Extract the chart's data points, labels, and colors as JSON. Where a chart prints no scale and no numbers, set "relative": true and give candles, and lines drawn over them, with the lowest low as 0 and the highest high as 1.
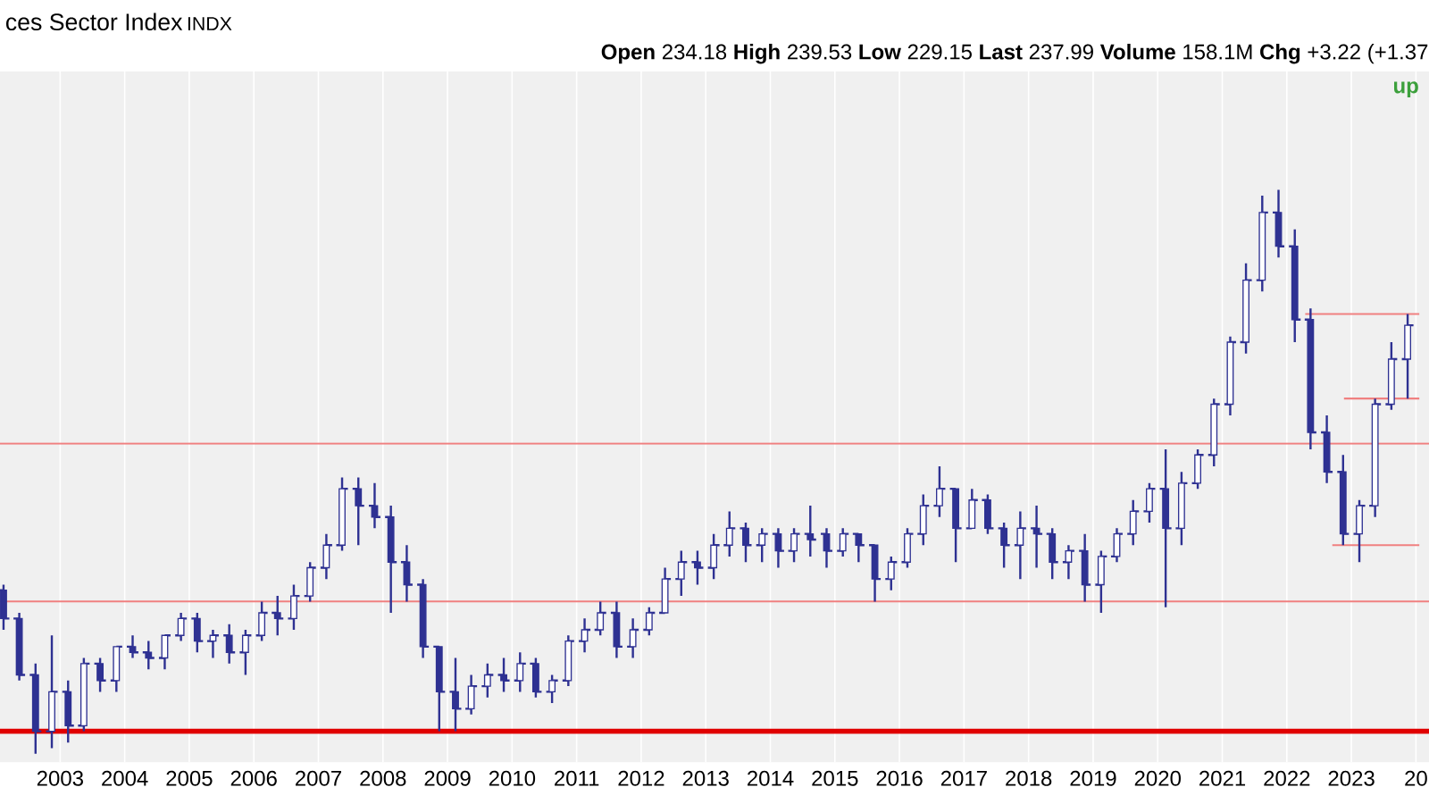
{
  "chart_data": {
    "type": "candlestick",
    "title": "ces Sector Index",
    "subtitle": "INDX",
    "relative": true,
    "color": "#2e3192",
    "annotations": [
      "**Open** 234.18 **High** 239.53 **Low** 229.15 **Last** 237.99 **Volume** 158.1M **Chg** +3.22 (+1.37",
      "up"
    ],
    "x": [
      "2002-02-15",
      "2002-05-15",
      "2002-08-15",
      "2002-11-15",
      "2003-02-15",
      "2003-05-15",
      "2003-08-15",
      "2003-11-15",
      "2004-02-15",
      "2004-05-15",
      "2004-08-15",
      "2004-11-15",
      "2005-02-15",
      "2005-05-15",
      "2005-08-15",
      "2005-11-15",
      "2006-02-15",
      "2006-05-15",
      "2006-08-15",
      "2006-11-15",
      "2007-02-15",
      "2007-05-15",
      "2007-08-15",
      "2007-11-15",
      "2008-02-15",
      "2008-05-15",
      "2008-08-15",
      "2008-11-15",
      "2009-02-15",
      "2009-05-15",
      "2009-08-15",
      "2009-11-15",
      "2010-02-15",
      "2010-05-15",
      "2010-08-15",
      "2010-11-15",
      "2011-02-15",
      "2011-05-15",
      "2011-08-15",
      "2011-11-15",
      "2012-02-15",
      "2012-05-15",
      "2012-08-15",
      "2012-11-15",
      "2013-02-15",
      "2013-05-15",
      "2013-08-15",
      "2013-11-15",
      "2014-02-15",
      "2014-05-15",
      "2014-08-15",
      "2014-11-15",
      "2015-02-15",
      "2015-05-15",
      "2015-08-15",
      "2015-11-15",
      "2016-02-15",
      "2016-05-15",
      "2016-08-15",
      "2016-11-15",
      "2017-02-15",
      "2017-05-15",
      "2017-08-15",
      "2017-11-15",
      "2018-02-15",
      "2018-05-15",
      "2018-08-15",
      "2018-11-15",
      "2019-02-15",
      "2019-05-15",
      "2019-08-15",
      "2019-11-15",
      "2020-02-15",
      "2020-05-15",
      "2020-08-15",
      "2020-11-15",
      "2021-02-15",
      "2021-05-15",
      "2021-08-15",
      "2021-11-15",
      "2022-02-15",
      "2022-05-15",
      "2022-08-15",
      "2022-11-15",
      "2023-02-15",
      "2023-05-15",
      "2023-08-15",
      "2023-11-15"
    ],
    "ohlc": [
      [
        0.29,
        0.3,
        0.22,
        0.24
      ],
      [
        0.24,
        0.25,
        0.13,
        0.14
      ],
      [
        0.14,
        0.16,
        0.0,
        0.04
      ],
      [
        0.04,
        0.21,
        0.01,
        0.11
      ],
      [
        0.11,
        0.13,
        0.02,
        0.05
      ],
      [
        0.05,
        0.17,
        0.04,
        0.16
      ],
      [
        0.16,
        0.17,
        0.11,
        0.13
      ],
      [
        0.13,
        0.19,
        0.11,
        0.19
      ],
      [
        0.19,
        0.21,
        0.17,
        0.18
      ],
      [
        0.18,
        0.2,
        0.15,
        0.17
      ],
      [
        0.17,
        0.21,
        0.15,
        0.21
      ],
      [
        0.21,
        0.25,
        0.2,
        0.24
      ],
      [
        0.24,
        0.25,
        0.18,
        0.2
      ],
      [
        0.2,
        0.22,
        0.17,
        0.21
      ],
      [
        0.21,
        0.23,
        0.16,
        0.18
      ],
      [
        0.18,
        0.22,
        0.14,
        0.21
      ],
      [
        0.21,
        0.27,
        0.2,
        0.25
      ],
      [
        0.25,
        0.28,
        0.21,
        0.24
      ],
      [
        0.24,
        0.3,
        0.22,
        0.28
      ],
      [
        0.28,
        0.34,
        0.27,
        0.33
      ],
      [
        0.33,
        0.39,
        0.31,
        0.37
      ],
      [
        0.37,
        0.49,
        0.36,
        0.47
      ],
      [
        0.47,
        0.49,
        0.37,
        0.44
      ],
      [
        0.44,
        0.48,
        0.4,
        0.42
      ],
      [
        0.42,
        0.44,
        0.25,
        0.34
      ],
      [
        0.34,
        0.37,
        0.27,
        0.3
      ],
      [
        0.3,
        0.31,
        0.17,
        0.19
      ],
      [
        0.19,
        0.19,
        0.04,
        0.11
      ],
      [
        0.11,
        0.17,
        0.04,
        0.08
      ],
      [
        0.08,
        0.14,
        0.07,
        0.12
      ],
      [
        0.12,
        0.16,
        0.1,
        0.14
      ],
      [
        0.14,
        0.17,
        0.11,
        0.13
      ],
      [
        0.13,
        0.18,
        0.11,
        0.16
      ],
      [
        0.16,
        0.17,
        0.1,
        0.11
      ],
      [
        0.11,
        0.14,
        0.09,
        0.13
      ],
      [
        0.13,
        0.21,
        0.12,
        0.2
      ],
      [
        0.2,
        0.24,
        0.18,
        0.22
      ],
      [
        0.22,
        0.27,
        0.21,
        0.25
      ],
      [
        0.25,
        0.27,
        0.17,
        0.19
      ],
      [
        0.19,
        0.24,
        0.17,
        0.22
      ],
      [
        0.22,
        0.26,
        0.21,
        0.25
      ],
      [
        0.25,
        0.33,
        0.25,
        0.31
      ],
      [
        0.31,
        0.36,
        0.28,
        0.34
      ],
      [
        0.34,
        0.36,
        0.3,
        0.33
      ],
      [
        0.33,
        0.39,
        0.31,
        0.37
      ],
      [
        0.37,
        0.43,
        0.35,
        0.4
      ],
      [
        0.4,
        0.41,
        0.34,
        0.37
      ],
      [
        0.37,
        0.4,
        0.34,
        0.39
      ],
      [
        0.39,
        0.4,
        0.33,
        0.36
      ],
      [
        0.36,
        0.4,
        0.34,
        0.39
      ],
      [
        0.39,
        0.44,
        0.35,
        0.38
      ],
      [
        0.39,
        0.4,
        0.33,
        0.36
      ],
      [
        0.36,
        0.4,
        0.35,
        0.39
      ],
      [
        0.39,
        0.39,
        0.34,
        0.37
      ],
      [
        0.37,
        0.37,
        0.27,
        0.31
      ],
      [
        0.31,
        0.35,
        0.29,
        0.34
      ],
      [
        0.34,
        0.4,
        0.33,
        0.39
      ],
      [
        0.39,
        0.46,
        0.37,
        0.44
      ],
      [
        0.44,
        0.51,
        0.42,
        0.47
      ],
      [
        0.47,
        0.47,
        0.34,
        0.4
      ],
      [
        0.4,
        0.47,
        0.4,
        0.45
      ],
      [
        0.45,
        0.46,
        0.39,
        0.4
      ],
      [
        0.4,
        0.41,
        0.33,
        0.37
      ],
      [
        0.37,
        0.43,
        0.31,
        0.4
      ],
      [
        0.4,
        0.44,
        0.33,
        0.39
      ],
      [
        0.39,
        0.4,
        0.31,
        0.34
      ],
      [
        0.34,
        0.37,
        0.31,
        0.36
      ],
      [
        0.36,
        0.39,
        0.27,
        0.3
      ],
      [
        0.3,
        0.36,
        0.25,
        0.35
      ],
      [
        0.35,
        0.4,
        0.34,
        0.39
      ],
      [
        0.39,
        0.45,
        0.37,
        0.43
      ],
      [
        0.43,
        0.48,
        0.41,
        0.47
      ],
      [
        0.47,
        0.54,
        0.26,
        0.4
      ],
      [
        0.4,
        0.5,
        0.37,
        0.48
      ],
      [
        0.48,
        0.54,
        0.47,
        0.53
      ],
      [
        0.53,
        0.63,
        0.51,
        0.62
      ],
      [
        0.62,
        0.74,
        0.6,
        0.73
      ],
      [
        0.73,
        0.87,
        0.71,
        0.84
      ],
      [
        0.84,
        0.99,
        0.82,
        0.96
      ],
      [
        0.96,
        1.0,
        0.88,
        0.9
      ],
      [
        0.9,
        0.93,
        0.73,
        0.77
      ],
      [
        0.77,
        0.79,
        0.54,
        0.57
      ],
      [
        0.57,
        0.6,
        0.48,
        0.5
      ],
      [
        0.5,
        0.53,
        0.37,
        0.39
      ],
      [
        0.39,
        0.45,
        0.34,
        0.44
      ],
      [
        0.44,
        0.63,
        0.42,
        0.62
      ],
      [
        0.62,
        0.73,
        0.61,
        0.7
      ],
      [
        0.7,
        0.78,
        0.63,
        0.76
      ]
    ],
    "series": [
      {
        "type": "line",
        "x": [
          "2022-04-15",
          "2024-01-20"
        ],
        "values": [
          0.78,
          0.78
        ],
        "color": "#f08080"
      },
      {
        "type": "line",
        "x": [
          "2022-11-20",
          "2024-01-20"
        ],
        "values": [
          0.63,
          0.63
        ],
        "color": "#f08080"
      },
      {
        "type": "line",
        "x": [
          "2022-09-15",
          "2024-01-20"
        ],
        "values": [
          0.37,
          0.37
        ],
        "color": "#f08080"
      }
    ],
    "ref_lines": [
      {
        "axis": "y",
        "value": 0.55,
        "color": "#f08080"
      },
      {
        "axis": "y",
        "value": 0.27,
        "color": "#f08080"
      },
      {
        "axis": "y",
        "value": 0.04,
        "color": "#e00000"
      }
    ],
    "xlim": [
      "2002-01-26",
      "2024-03-15"
    ],
    "xticks": [
      {
        "value": "2003-01-01",
        "label": "2003"
      },
      {
        "value": "2004-01-01",
        "label": "2004"
      },
      {
        "value": "2005-01-01",
        "label": "2005"
      },
      {
        "value": "2006-01-01",
        "label": "2006"
      },
      {
        "value": "2007-01-01",
        "label": "2007"
      },
      {
        "value": "2008-01-01",
        "label": "2008"
      },
      {
        "value": "2009-01-01",
        "label": "2009"
      },
      {
        "value": "2010-01-01",
        "label": "2010"
      },
      {
        "value": "2011-01-01",
        "label": "2011"
      },
      {
        "value": "2012-01-01",
        "label": "2012"
      },
      {
        "value": "2013-01-01",
        "label": "2013"
      },
      {
        "value": "2014-01-01",
        "label": "2014"
      },
      {
        "value": "2015-01-01",
        "label": "2015"
      },
      {
        "value": "2016-01-01",
        "label": "2016"
      },
      {
        "value": "2017-01-01",
        "label": "2017"
      },
      {
        "value": "2018-01-01",
        "label": "2018"
      },
      {
        "value": "2019-01-01",
        "label": "2019"
      },
      {
        "value": "2020-01-01",
        "label": "2020"
      },
      {
        "value": "2021-01-01",
        "label": "2021"
      },
      {
        "value": "2022-01-01",
        "label": "2022"
      },
      {
        "value": "2023-01-01",
        "label": "2023"
      },
      {
        "value": "2024-01-01",
        "label": "20"
      }
    ],
    "grid": "x"
  }
}
